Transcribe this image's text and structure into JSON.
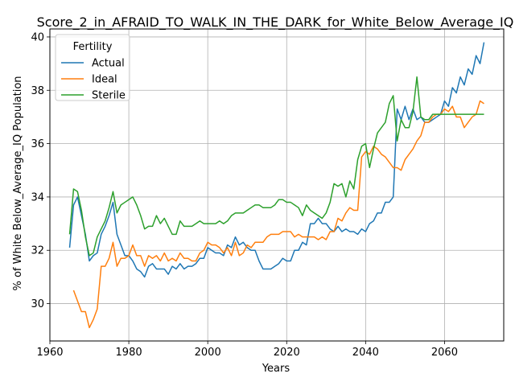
{
  "chart_data": {
    "type": "line",
    "title": "Score_2_in_AFRAID_TO_WALK_IN_THE_DARK_for_White_Below_Average_IQ",
    "xlabel": "Years",
    "ylabel": "% of White Below_Average_IQ Population",
    "xlim": [
      1960,
      2075
    ],
    "ylim": [
      28.6,
      40.3
    ],
    "xticks": [
      1960,
      1980,
      2000,
      2020,
      2040,
      2060
    ],
    "yticks": [
      30,
      32,
      34,
      36,
      38,
      40
    ],
    "grid": true,
    "legend": {
      "title": "Fertility",
      "placement": "top-left"
    },
    "series": [
      {
        "name": "Actual",
        "color": "#1f77b4",
        "x": [
          1965,
          1966,
          1967,
          1968,
          1969,
          1970,
          1971,
          1972,
          1973,
          1974,
          1975,
          1976,
          1977,
          1978,
          1979,
          1980,
          1981,
          1982,
          1983,
          1984,
          1985,
          1986,
          1987,
          1988,
          1989,
          1990,
          1991,
          1992,
          1993,
          1994,
          1995,
          1996,
          1997,
          1998,
          1999,
          2000,
          2001,
          2002,
          2003,
          2004,
          2005,
          2006,
          2007,
          2008,
          2009,
          2010,
          2011,
          2012,
          2013,
          2014,
          2015,
          2016,
          2017,
          2018,
          2019,
          2020,
          2021,
          2022,
          2023,
          2024,
          2025,
          2026,
          2027,
          2028,
          2029,
          2030,
          2031,
          2032,
          2033,
          2034,
          2035,
          2036,
          2037,
          2038,
          2039,
          2040,
          2041,
          2042,
          2043,
          2044,
          2045,
          2046,
          2047,
          2048,
          2049,
          2050,
          2051,
          2052,
          2053,
          2054,
          2055,
          2056,
          2057,
          2058,
          2059,
          2060,
          2061,
          2062,
          2063,
          2064,
          2065,
          2066,
          2067,
          2068,
          2069,
          2070
        ],
        "y": [
          32.1,
          33.7,
          34.0,
          33.3,
          32.6,
          31.6,
          31.8,
          31.9,
          32.6,
          32.9,
          33.3,
          33.8,
          32.6,
          32.2,
          31.8,
          31.8,
          31.6,
          31.3,
          31.2,
          31.0,
          31.4,
          31.5,
          31.3,
          31.3,
          31.3,
          31.1,
          31.4,
          31.3,
          31.5,
          31.3,
          31.4,
          31.4,
          31.5,
          31.7,
          31.7,
          32.1,
          32.0,
          31.9,
          31.9,
          31.8,
          32.2,
          32.1,
          32.5,
          32.2,
          32.3,
          32.1,
          32.0,
          32.0,
          31.6,
          31.3,
          31.3,
          31.3,
          31.4,
          31.5,
          31.7,
          31.6,
          31.6,
          32.0,
          32.0,
          32.3,
          32.2,
          33.0,
          33.0,
          33.2,
          33.0,
          33.0,
          32.8,
          32.7,
          32.9,
          32.7,
          32.8,
          32.7,
          32.7,
          32.6,
          32.8,
          32.7,
          33.0,
          33.1,
          33.4,
          33.4,
          33.8,
          33.8,
          34.0,
          37.3,
          36.9,
          37.4,
          36.9,
          37.3,
          36.9,
          37.0,
          36.8,
          36.8,
          36.9,
          37.0,
          37.1,
          37.6,
          37.4,
          38.1,
          37.9,
          38.5,
          38.2,
          38.8,
          38.6,
          39.3,
          39.0,
          39.8
        ]
      },
      {
        "name": "Ideal",
        "color": "#ff7f0e",
        "x": [
          1966,
          1967,
          1968,
          1969,
          1970,
          1971,
          1972,
          1973,
          1974,
          1975,
          1976,
          1977,
          1978,
          1979,
          1980,
          1981,
          1982,
          1983,
          1984,
          1985,
          1986,
          1987,
          1988,
          1989,
          1990,
          1991,
          1992,
          1993,
          1994,
          1995,
          1996,
          1997,
          1998,
          1999,
          2000,
          2001,
          2002,
          2003,
          2004,
          2005,
          2006,
          2007,
          2008,
          2009,
          2010,
          2011,
          2012,
          2013,
          2014,
          2015,
          2016,
          2017,
          2018,
          2019,
          2020,
          2021,
          2022,
          2023,
          2024,
          2025,
          2026,
          2027,
          2028,
          2029,
          2030,
          2031,
          2032,
          2033,
          2034,
          2035,
          2036,
          2037,
          2038,
          2039,
          2040,
          2041,
          2042,
          2043,
          2044,
          2045,
          2046,
          2047,
          2048,
          2049,
          2050,
          2051,
          2052,
          2053,
          2054,
          2055,
          2056,
          2057,
          2058,
          2059,
          2060,
          2061,
          2062,
          2063,
          2064,
          2065,
          2066,
          2067,
          2068,
          2069,
          2070
        ],
        "y": [
          30.5,
          30.1,
          29.7,
          29.7,
          29.1,
          29.4,
          29.8,
          31.4,
          31.4,
          31.7,
          32.3,
          31.4,
          31.7,
          31.7,
          31.8,
          32.2,
          31.8,
          31.8,
          31.4,
          31.8,
          31.7,
          31.8,
          31.6,
          31.9,
          31.6,
          31.7,
          31.6,
          31.9,
          31.7,
          31.7,
          31.6,
          31.6,
          31.9,
          32.0,
          32.3,
          32.2,
          32.2,
          32.1,
          31.9,
          32.1,
          31.8,
          32.3,
          31.8,
          31.9,
          32.2,
          32.1,
          32.3,
          32.3,
          32.3,
          32.5,
          32.6,
          32.6,
          32.6,
          32.7,
          32.7,
          32.7,
          32.5,
          32.6,
          32.5,
          32.5,
          32.5,
          32.5,
          32.4,
          32.5,
          32.4,
          32.7,
          32.7,
          33.2,
          33.1,
          33.4,
          33.6,
          33.5,
          33.5,
          35.5,
          35.7,
          35.6,
          35.9,
          35.8,
          35.6,
          35.5,
          35.3,
          35.1,
          35.1,
          35.0,
          35.4,
          35.6,
          35.8,
          36.1,
          36.3,
          36.8,
          36.8,
          37.0,
          37.1,
          37.1,
          37.3,
          37.2,
          37.4,
          37.0,
          37.0,
          36.6,
          36.8,
          37.0,
          37.1,
          37.6,
          37.5
        ]
      },
      {
        "name": "Sterile",
        "color": "#2ca02c",
        "x": [
          1965,
          1966,
          1967,
          1968,
          1969,
          1970,
          1971,
          1972,
          1973,
          1974,
          1975,
          1976,
          1977,
          1978,
          1979,
          1980,
          1981,
          1982,
          1983,
          1984,
          1985,
          1986,
          1987,
          1988,
          1989,
          1990,
          1991,
          1992,
          1993,
          1994,
          1995,
          1996,
          1997,
          1998,
          1999,
          2000,
          2001,
          2002,
          2003,
          2004,
          2005,
          2006,
          2007,
          2008,
          2009,
          2010,
          2011,
          2012,
          2013,
          2014,
          2015,
          2016,
          2017,
          2018,
          2019,
          2020,
          2021,
          2022,
          2023,
          2024,
          2025,
          2026,
          2027,
          2028,
          2029,
          2030,
          2031,
          2032,
          2033,
          2034,
          2035,
          2036,
          2037,
          2038,
          2039,
          2040,
          2041,
          2042,
          2043,
          2044,
          2045,
          2046,
          2047,
          2048,
          2049,
          2050,
          2051,
          2052,
          2053,
          2054,
          2055,
          2056,
          2057,
          2058,
          2059,
          2060,
          2061,
          2062,
          2063,
          2064,
          2065,
          2066,
          2067,
          2068,
          2069,
          2070
        ],
        "y": [
          32.6,
          34.3,
          34.2,
          33.5,
          32.5,
          31.8,
          31.9,
          32.5,
          32.8,
          33.1,
          33.6,
          34.2,
          33.4,
          33.7,
          33.8,
          33.9,
          34.0,
          33.7,
          33.3,
          32.8,
          32.9,
          32.9,
          33.3,
          33.0,
          33.2,
          32.9,
          32.6,
          32.6,
          33.1,
          32.9,
          32.9,
          32.9,
          33.0,
          33.1,
          33.0,
          33.0,
          33.0,
          33.0,
          33.1,
          33.0,
          33.1,
          33.3,
          33.4,
          33.4,
          33.4,
          33.5,
          33.6,
          33.7,
          33.7,
          33.6,
          33.6,
          33.6,
          33.7,
          33.9,
          33.9,
          33.8,
          33.8,
          33.7,
          33.6,
          33.3,
          33.7,
          33.5,
          33.4,
          33.3,
          33.2,
          33.4,
          33.8,
          34.5,
          34.4,
          34.5,
          34.0,
          34.6,
          34.3,
          35.4,
          35.9,
          36.0,
          35.1,
          35.8,
          36.4,
          36.6,
          36.8,
          37.5,
          37.8,
          36.1,
          36.9,
          36.6,
          36.6,
          37.2,
          38.5,
          37.0,
          36.9,
          36.9,
          37.1,
          37.1,
          37.1,
          37.1,
          37.1,
          37.1,
          37.1,
          37.1,
          37.1,
          37.1,
          37.1,
          37.1,
          37.1,
          37.1
        ]
      }
    ]
  }
}
